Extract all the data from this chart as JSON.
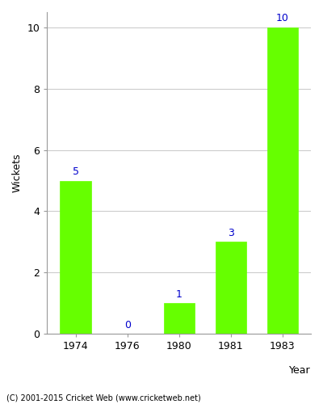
{
  "years": [
    "1974",
    "1976",
    "1980",
    "1981",
    "1983"
  ],
  "values": [
    5,
    0,
    1,
    3,
    10
  ],
  "bar_color": "#66ff00",
  "bar_edge_color": "#66ff00",
  "label_color": "#0000cc",
  "xlabel": "Year",
  "ylabel": "Wickets",
  "ylim": [
    0,
    10.5
  ],
  "yticks": [
    0,
    2,
    4,
    6,
    8,
    10
  ],
  "footnote": "(C) 2001-2015 Cricket Web (www.cricketweb.net)",
  "footnote_color": "#000000",
  "background_color": "#ffffff",
  "grid_color": "#cccccc",
  "label_fontsize": 9,
  "axis_fontsize": 9,
  "bar_width": 0.6
}
